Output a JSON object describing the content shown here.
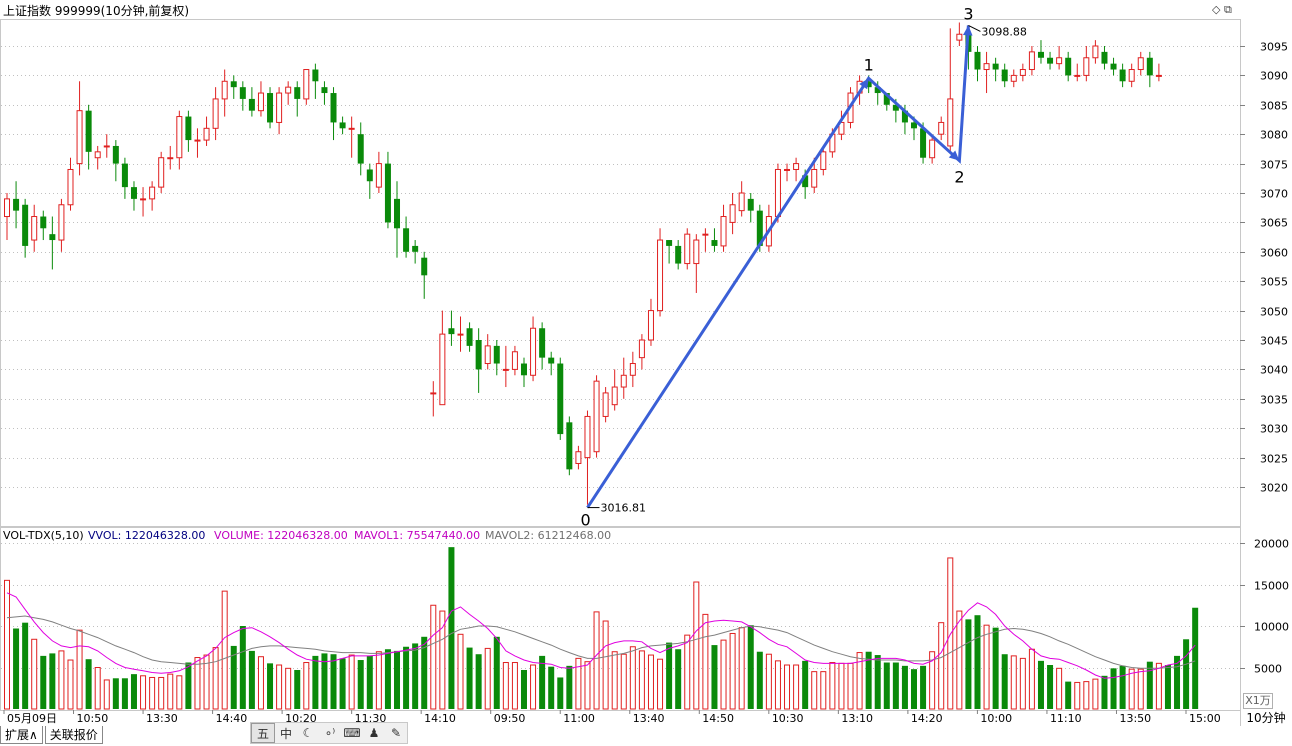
{
  "header": {
    "title": "上证指数 999999(10分钟,前复权)"
  },
  "vol_header": {
    "indicator": "VOL-TDX(5,10)",
    "vvol": "VVOL: 122046328.00",
    "volume": "VOLUME: 122046328.00",
    "mavol1": "MAVOL1: 75547440.00",
    "mavol2": "MAVOL2: 61212468.00"
  },
  "window_icons": "◇ ⧉",
  "unit_label": "X1万",
  "period_label": "10分钟",
  "tabs": [
    "扩展∧",
    "关联报价"
  ],
  "toolbar": [
    {
      "name": "five-icon",
      "glyph": "五"
    },
    {
      "name": "zhong-icon",
      "glyph": "中"
    },
    {
      "name": "moon-icon",
      "glyph": "☾"
    },
    {
      "name": "dots-icon",
      "glyph": "∘⁾"
    },
    {
      "name": "keyboard-icon",
      "glyph": "⌨"
    },
    {
      "name": "person-icon",
      "glyph": "♟"
    },
    {
      "name": "wrench-icon",
      "glyph": "✎"
    }
  ],
  "colors": {
    "up": "#e02020",
    "down": "#0a8a0a",
    "volume_line": "#e000e0",
    "mavol2_line": "#808080",
    "wave_line": "#3a5fd6",
    "grid": "#c0c0c0",
    "vvol_text": "#000080"
  },
  "chart_data": {
    "type": "candlestick",
    "price_axis": {
      "min": 3015,
      "max": 3098,
      "ticks": [
        3020,
        3025,
        3030,
        3035,
        3040,
        3045,
        3050,
        3055,
        3060,
        3065,
        3070,
        3075,
        3080,
        3085,
        3090,
        3095
      ]
    },
    "volume_axis": {
      "min": 0,
      "max": 20000,
      "ticks": [
        5000,
        10000,
        15000,
        20000
      ],
      "unit": "X1万"
    },
    "time_labels": [
      "05月09日",
      "10:50",
      "13:30",
      "14:40",
      "10:20",
      "11:30",
      "14:10",
      "09:50",
      "11:00",
      "13:40",
      "14:50",
      "10:30",
      "13:10",
      "14:20",
      "10:00",
      "11:10",
      "13:50",
      "15:00"
    ],
    "candles": [
      [
        3066,
        3069,
        3070,
        3062
      ],
      [
        3069,
        3067,
        3072,
        3064
      ],
      [
        3068,
        3061,
        3069,
        3059
      ],
      [
        3062,
        3066,
        3068,
        3060
      ],
      [
        3066,
        3064,
        3067,
        3062
      ],
      [
        3063,
        3062,
        3066,
        3057
      ],
      [
        3062,
        3068,
        3069,
        3060
      ],
      [
        3068,
        3074,
        3076,
        3067
      ],
      [
        3075,
        3084,
        3089,
        3073
      ],
      [
        3084,
        3077,
        3085,
        3074
      ],
      [
        3076,
        3077,
        3078,
        3074
      ],
      [
        3078,
        3078,
        3080,
        3076
      ],
      [
        3078,
        3075,
        3079,
        3072
      ],
      [
        3075,
        3071,
        3076,
        3069
      ],
      [
        3071,
        3069,
        3072,
        3067
      ],
      [
        3069,
        3069,
        3071,
        3066
      ],
      [
        3069,
        3071,
        3072,
        3067
      ],
      [
        3071,
        3076,
        3077,
        3070
      ],
      [
        3076,
        3076,
        3078,
        3074
      ],
      [
        3076,
        3083,
        3084,
        3074
      ],
      [
        3083,
        3079,
        3084,
        3077
      ],
      [
        3079,
        3079,
        3081,
        3076
      ],
      [
        3079,
        3081,
        3083,
        3078
      ],
      [
        3081,
        3086,
        3088,
        3079
      ],
      [
        3086,
        3089,
        3091,
        3083
      ],
      [
        3089,
        3088,
        3090,
        3086
      ],
      [
        3088,
        3086,
        3089,
        3084
      ],
      [
        3086,
        3084,
        3088,
        3083
      ],
      [
        3084,
        3087,
        3089,
        3083
      ],
      [
        3087,
        3082,
        3088,
        3081
      ],
      [
        3082,
        3087,
        3088,
        3080
      ],
      [
        3087,
        3088,
        3089,
        3085
      ],
      [
        3088,
        3086,
        3089,
        3083
      ],
      [
        3086,
        3091,
        3091,
        3085
      ],
      [
        3091,
        3089,
        3092,
        3086
      ],
      [
        3088,
        3087,
        3089,
        3085
      ],
      [
        3087,
        3082,
        3088,
        3079
      ],
      [
        3082,
        3081,
        3083,
        3080
      ],
      [
        3081,
        3081,
        3083,
        3076
      ],
      [
        3080,
        3075,
        3082,
        3073
      ],
      [
        3074,
        3072,
        3075,
        3069
      ],
      [
        3071,
        3075,
        3077,
        3070
      ],
      [
        3075,
        3065,
        3077,
        3064
      ],
      [
        3069,
        3064,
        3072,
        3059
      ],
      [
        3064,
        3060,
        3066,
        3059
      ],
      [
        3061,
        3060,
        3062,
        3058
      ],
      [
        3059,
        3056,
        3060,
        3052
      ],
      [
        3036,
        3036,
        3038,
        3032
      ],
      [
        3034,
        3046,
        3050,
        3034
      ],
      [
        3047,
        3046,
        3050,
        3044
      ],
      [
        3046,
        3046,
        3049,
        3043
      ],
      [
        3047,
        3044,
        3048,
        3043
      ],
      [
        3045,
        3040,
        3047,
        3036
      ],
      [
        3041,
        3044,
        3046,
        3040
      ],
      [
        3044,
        3041,
        3045,
        3039
      ],
      [
        3040,
        3040,
        3044,
        3037
      ],
      [
        3040,
        3043,
        3044,
        3039
      ],
      [
        3041,
        3039,
        3042,
        3037
      ],
      [
        3039,
        3047,
        3049,
        3038
      ],
      [
        3047,
        3042,
        3048,
        3040
      ],
      [
        3042,
        3041,
        3043,
        3039
      ],
      [
        3041,
        3029,
        3042,
        3028
      ],
      [
        3031,
        3023,
        3032,
        3022
      ],
      [
        3024,
        3026,
        3027,
        3023
      ],
      [
        3025,
        3032,
        3033,
        3017
      ],
      [
        3026,
        3038,
        3039,
        3025
      ],
      [
        3032,
        3036,
        3037,
        3031
      ],
      [
        3034,
        3037,
        3040,
        3033
      ],
      [
        3037,
        3039,
        3042,
        3035
      ],
      [
        3039,
        3041,
        3043,
        3037
      ],
      [
        3042,
        3045,
        3046,
        3040
      ],
      [
        3045,
        3050,
        3052,
        3044
      ],
      [
        3050,
        3062,
        3064,
        3049
      ],
      [
        3062,
        3061,
        3062,
        3058
      ],
      [
        3061,
        3058,
        3062,
        3057
      ],
      [
        3058,
        3063,
        3064,
        3057
      ],
      [
        3058,
        3062,
        3063,
        3053
      ],
      [
        3063,
        3063,
        3064,
        3060
      ],
      [
        3062,
        3061,
        3064,
        3060
      ],
      [
        3061,
        3066,
        3068,
        3060
      ],
      [
        3065,
        3068,
        3070,
        3063
      ],
      [
        3067,
        3070,
        3072,
        3066
      ],
      [
        3069,
        3067,
        3070,
        3065
      ],
      [
        3067,
        3061,
        3068,
        3060
      ],
      [
        3061,
        3066,
        3068,
        3060
      ],
      [
        3066,
        3074,
        3075,
        3065
      ],
      [
        3074,
        3074,
        3075,
        3072
      ],
      [
        3074,
        3075,
        3076,
        3072
      ],
      [
        3073,
        3071,
        3074,
        3069
      ],
      [
        3071,
        3074,
        3076,
        3070
      ],
      [
        3074,
        3077,
        3078,
        3073
      ],
      [
        3077,
        3080,
        3081,
        3076
      ],
      [
        3080,
        3082,
        3084,
        3079
      ],
      [
        3082,
        3087,
        3088,
        3081
      ],
      [
        3087,
        3089,
        3090,
        3085
      ],
      [
        3089,
        3088,
        3090,
        3087
      ],
      [
        3088,
        3087,
        3089,
        3085
      ],
      [
        3087,
        3085,
        3087,
        3084
      ],
      [
        3085,
        3084,
        3086,
        3082
      ],
      [
        3084,
        3082,
        3085,
        3080
      ],
      [
        3082,
        3081,
        3083,
        3079
      ],
      [
        3081,
        3076,
        3082,
        3075
      ],
      [
        3076,
        3079,
        3080,
        3075
      ],
      [
        3080,
        3082,
        3083,
        3079
      ],
      [
        3078,
        3086,
        3098,
        3077
      ],
      [
        3096,
        3097,
        3099,
        3095
      ],
      [
        3097,
        3094,
        3098,
        3091
      ],
      [
        3094,
        3091,
        3095,
        3089
      ],
      [
        3091,
        3092,
        3094,
        3087
      ],
      [
        3092,
        3091,
        3093,
        3089
      ],
      [
        3091,
        3089,
        3092,
        3088
      ],
      [
        3089,
        3090,
        3091,
        3088
      ],
      [
        3090,
        3091,
        3092,
        3089
      ],
      [
        3091,
        3094,
        3095,
        3090
      ],
      [
        3094,
        3093,
        3096,
        3092
      ],
      [
        3093,
        3092,
        3094,
        3091
      ],
      [
        3092,
        3093,
        3095,
        3091
      ],
      [
        3093,
        3090,
        3094,
        3089
      ],
      [
        3090,
        3090,
        3092,
        3089
      ],
      [
        3090,
        3093,
        3095,
        3089
      ],
      [
        3093,
        3095,
        3096,
        3092
      ],
      [
        3094,
        3092,
        3095,
        3091
      ],
      [
        3092,
        3091,
        3093,
        3090
      ],
      [
        3091,
        3089,
        3092,
        3088
      ],
      [
        3089,
        3091,
        3092,
        3088
      ],
      [
        3091,
        3093,
        3094,
        3090
      ],
      [
        3093,
        3090,
        3094,
        3088
      ],
      [
        3090,
        3090,
        3092,
        3089
      ]
    ],
    "volumes": [
      15500,
      9700,
      10400,
      8400,
      6400,
      6700,
      7000,
      5900,
      9500,
      6000,
      5000,
      3500,
      3700,
      3700,
      4200,
      4000,
      3800,
      3800,
      4200,
      4000,
      5600,
      6200,
      6500,
      7400,
      14200,
      7600,
      10000,
      7000,
      6300,
      5500,
      5300,
      4900,
      4700,
      5600,
      6400,
      6700,
      6600,
      6100,
      6500,
      5900,
      6400,
      6900,
      7200,
      7000,
      7500,
      7900,
      8700,
      12500,
      11800,
      19500,
      9000,
      7400,
      6600,
      7300,
      8700,
      5600,
      5600,
      4700,
      5300,
      6400,
      5100,
      3800,
      5200,
      6100,
      5700,
      11700,
      10600,
      6900,
      6600,
      7500,
      7000,
      6500,
      6000,
      8000,
      7200,
      8900,
      15300,
      11400,
      7700,
      8300,
      9100,
      9800,
      10100,
      6900,
      6600,
      5800,
      5300,
      5300,
      5800,
      4500,
      4500,
      5600,
      5500,
      5500,
      6800,
      6900,
      6500,
      5600,
      5600,
      5200,
      4800,
      5200,
      6900,
      10400,
      18200,
      11800,
      10800,
      11300,
      10100,
      9800,
      6600,
      6400,
      6100,
      7200,
      5800,
      5300,
      4900,
      3300,
      3200,
      3300,
      3600,
      4000,
      4900,
      5200,
      4800,
      4800,
      5700,
      5500,
      5300,
      6400,
      8400,
      12200
    ],
    "mavol1": [
      14000,
      13500,
      12000,
      10500,
      9200,
      8200,
      7600,
      7400,
      7600,
      7500,
      7000,
      6200,
      5500,
      5000,
      4800,
      4600,
      4400,
      4300,
      4400,
      4600,
      5100,
      5800,
      6400,
      7300,
      8600,
      9200,
      9700,
      9800,
      9300,
      8700,
      8000,
      7200,
      6500,
      6000,
      5800,
      5700,
      5800,
      6100,
      6400,
      6400,
      6400,
      6500,
      6700,
      6900,
      7100,
      7300,
      7800,
      8900,
      9800,
      11800,
      12300,
      11400,
      10600,
      9700,
      8500,
      7000,
      6400,
      5900,
      5600,
      5500,
      5400,
      5000,
      4900,
      5100,
      5300,
      6500,
      7600,
      8000,
      8200,
      8200,
      8100,
      7300,
      6800,
      7300,
      7600,
      8000,
      9400,
      10400,
      10600,
      10700,
      10600,
      10500,
      9900,
      9200,
      8400,
      7800,
      7500,
      6700,
      5900,
      5600,
      5500,
      5500,
      5500,
      5500,
      5700,
      5900,
      6100,
      6100,
      6100,
      5900,
      5500,
      5400,
      5800,
      6800,
      9000,
      10600,
      11900,
      12800,
      12300,
      11400,
      10000,
      9000,
      8200,
      7200,
      6400,
      6100,
      6000,
      5600,
      5200,
      4700,
      4100,
      3700,
      3800,
      4000,
      4300,
      4500,
      4600,
      4900,
      5300,
      5500,
      6400,
      7700
    ],
    "mavol2": [
      11000,
      11100,
      11200,
      11000,
      10800,
      10500,
      10100,
      9700,
      9400,
      9000,
      8600,
      8100,
      7600,
      7200,
      6800,
      6300,
      5900,
      5700,
      5600,
      5500,
      5400,
      5400,
      5500,
      5700,
      6100,
      6500,
      6900,
      7300,
      7500,
      7600,
      7600,
      7500,
      7400,
      7300,
      7200,
      7000,
      6900,
      6800,
      6800,
      6800,
      6700,
      6700,
      6800,
      6900,
      7000,
      7100,
      7400,
      7900,
      8400,
      9100,
      9600,
      9800,
      10000,
      10000,
      9900,
      9600,
      9300,
      8900,
      8500,
      8100,
      7700,
      7200,
      6800,
      6400,
      6100,
      6100,
      6300,
      6500,
      6700,
      7000,
      7400,
      7600,
      7700,
      7800,
      7900,
      8100,
      8400,
      8700,
      8900,
      9200,
      9500,
      9800,
      10000,
      9900,
      9700,
      9500,
      9200,
      8700,
      8200,
      7700,
      7300,
      6900,
      6600,
      6300,
      6100,
      6000,
      5900,
      5900,
      5900,
      5800,
      5800,
      5800,
      5900,
      6200,
      6800,
      7400,
      8000,
      8600,
      9000,
      9300,
      9600,
      9700,
      9600,
      9400,
      9100,
      8700,
      8200,
      7800,
      7300,
      6800,
      6300,
      5900,
      5500,
      5200,
      5000,
      4900,
      4900,
      4900,
      5000,
      5100,
      5400,
      5800
    ]
  },
  "annotations": {
    "wave_labels": [
      "0",
      "1",
      "2",
      "3"
    ],
    "wave_values": [
      3016.5,
      3089.5,
      3075.5,
      3098.5
    ],
    "wave_candles": [
      64,
      95,
      105,
      106
    ],
    "low_label": "3016.81",
    "high_label": "3098.88"
  }
}
